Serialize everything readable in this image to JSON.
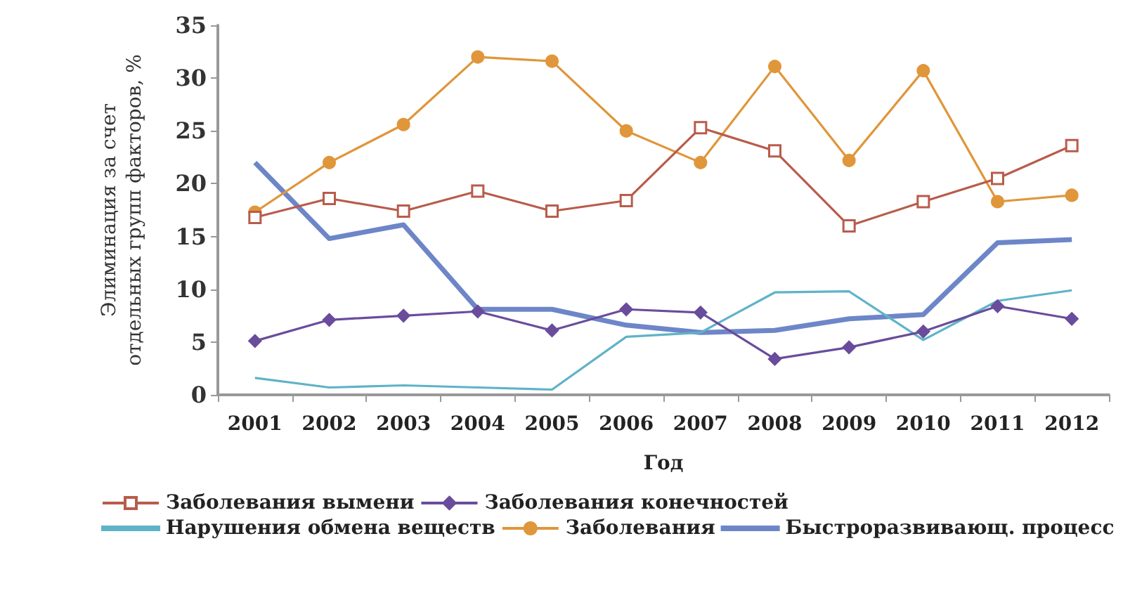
{
  "chart_data": {
    "type": "line",
    "xlabel": "Год",
    "ylabel": "Элиминация за счет\nотдельных групп факторов, %",
    "categories": [
      "2001",
      "2002",
      "2003",
      "2004",
      "2005",
      "2006",
      "2007",
      "2008",
      "2009",
      "2010",
      "2011",
      "2012"
    ],
    "ylim": [
      0,
      35
    ],
    "yticks": [
      0,
      5,
      10,
      15,
      20,
      25,
      30,
      35
    ],
    "grid": false,
    "legend": "bottom",
    "series": [
      {
        "name": "Заболевания вымени",
        "color": "#b85c4b",
        "marker": "square",
        "values": [
          16.8,
          18.6,
          17.4,
          19.3,
          17.4,
          18.4,
          25.3,
          23.1,
          16.0,
          18.3,
          20.5,
          23.6
        ]
      },
      {
        "name": "Заболевания конечностей",
        "color": "#6a4c9c",
        "marker": "diamond",
        "values": [
          5.1,
          7.1,
          7.5,
          7.9,
          6.1,
          8.1,
          7.8,
          3.4,
          4.5,
          6.0,
          8.4,
          7.2
        ]
      },
      {
        "name": "Нарушения обмена веществ",
        "color": "#5fb3c8",
        "marker": "none",
        "values": [
          1.6,
          0.7,
          0.9,
          0.7,
          0.5,
          5.5,
          5.9,
          9.7,
          9.8,
          5.2,
          8.9,
          9.9
        ]
      },
      {
        "name": "Заболевания",
        "color": "#e0963a",
        "marker": "circle",
        "values": [
          17.3,
          22.0,
          25.6,
          32.0,
          31.6,
          25.0,
          22.0,
          31.1,
          22.2,
          30.7,
          18.3,
          18.9
        ]
      },
      {
        "name": "Быстроразвивающ. процесс",
        "color": "#6d86c8",
        "marker": "none",
        "values": [
          22.0,
          14.8,
          16.1,
          8.1,
          8.1,
          6.6,
          5.9,
          6.1,
          7.2,
          7.6,
          14.4,
          14.7
        ]
      }
    ]
  }
}
